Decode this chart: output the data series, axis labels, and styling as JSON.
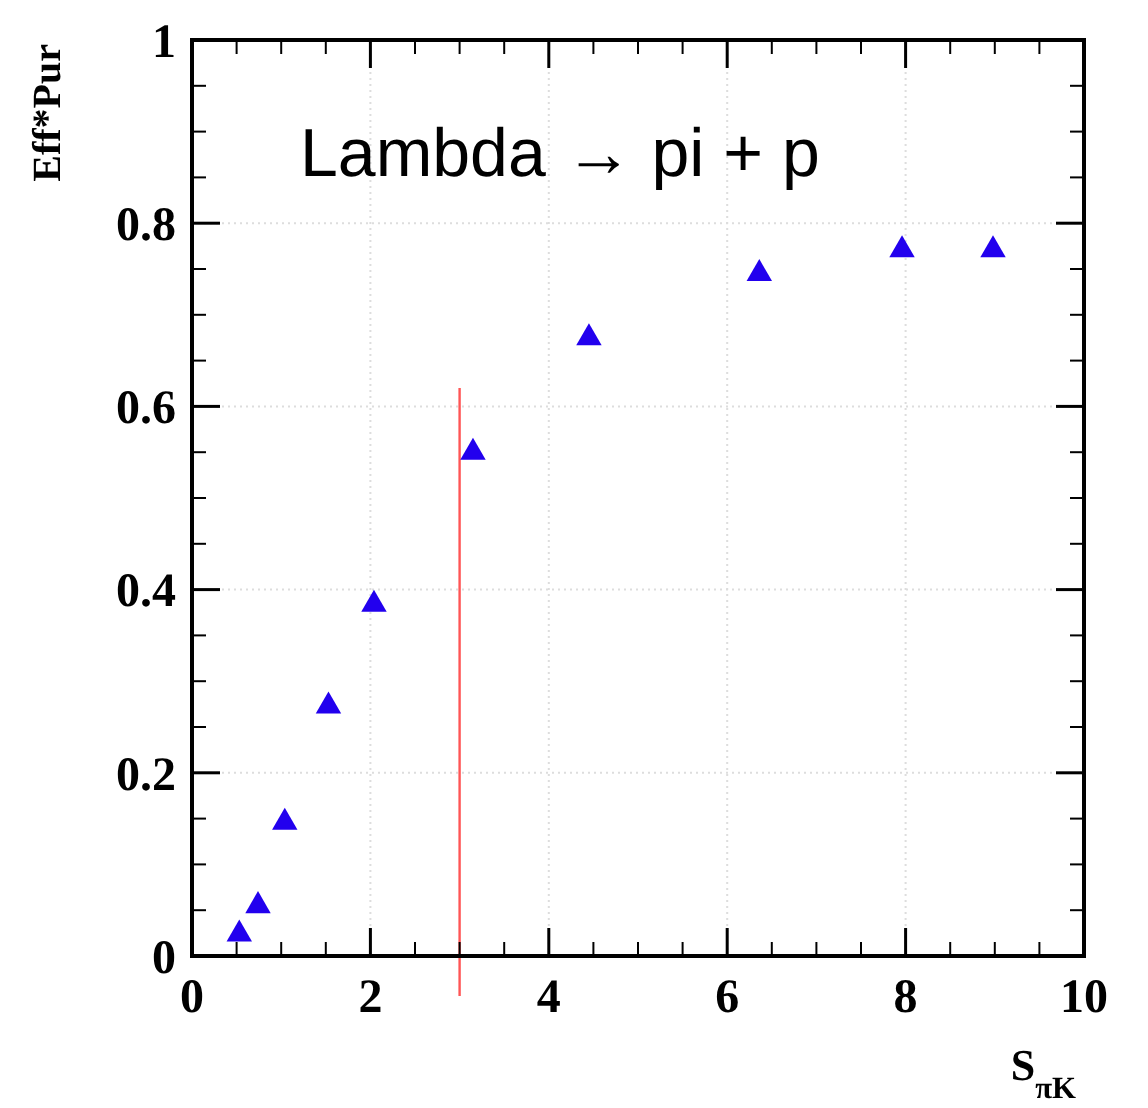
{
  "chart_data": {
    "type": "scatter",
    "xlabel": "S$_{πK}$",
    "ylabel": "Eff*Pur",
    "annotations": [
      "Lambda → pi + p"
    ],
    "x": [
      0.53,
      0.74,
      1.04,
      1.53,
      2.04,
      3.15,
      4.45,
      6.36,
      7.96,
      8.98
    ],
    "series": [
      {
        "color": "#2200ee",
        "values": [
          0.026,
          0.057,
          0.148,
          0.275,
          0.386,
          0.552,
          0.677,
          0.747,
          0.773,
          0.773
        ]
      }
    ],
    "xlim": [
      0,
      10
    ],
    "xticks": [
      0,
      2,
      4,
      6,
      8,
      10
    ],
    "ylim": [
      0,
      1
    ],
    "yticks": [
      0,
      0.2,
      0.4,
      0.6,
      0.8,
      1
    ],
    "ref_lines": [
      {
        "axis": "x",
        "value": 3,
        "color": "#ff5555"
      }
    ],
    "grid": true,
    "marker": "triangle"
  }
}
